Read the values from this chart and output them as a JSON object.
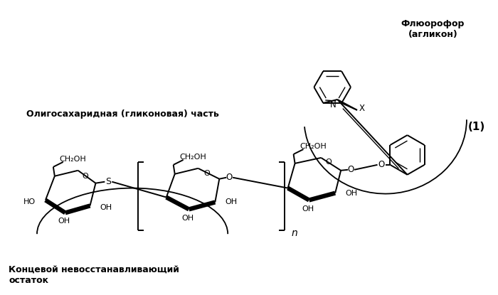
{
  "fig_width": 7.0,
  "fig_height": 4.15,
  "dpi": 100,
  "background_color": "#ffffff",
  "label_fluoro_1": "Флюорофор",
  "label_fluoro_2": "(агликон)",
  "label_oligo": "Олигосахаридная (гликоновая) часть",
  "label_end_1": "Концевой невосстанавливающий",
  "label_end_2": "остаток",
  "label_n": "n",
  "label_1": "(1)"
}
